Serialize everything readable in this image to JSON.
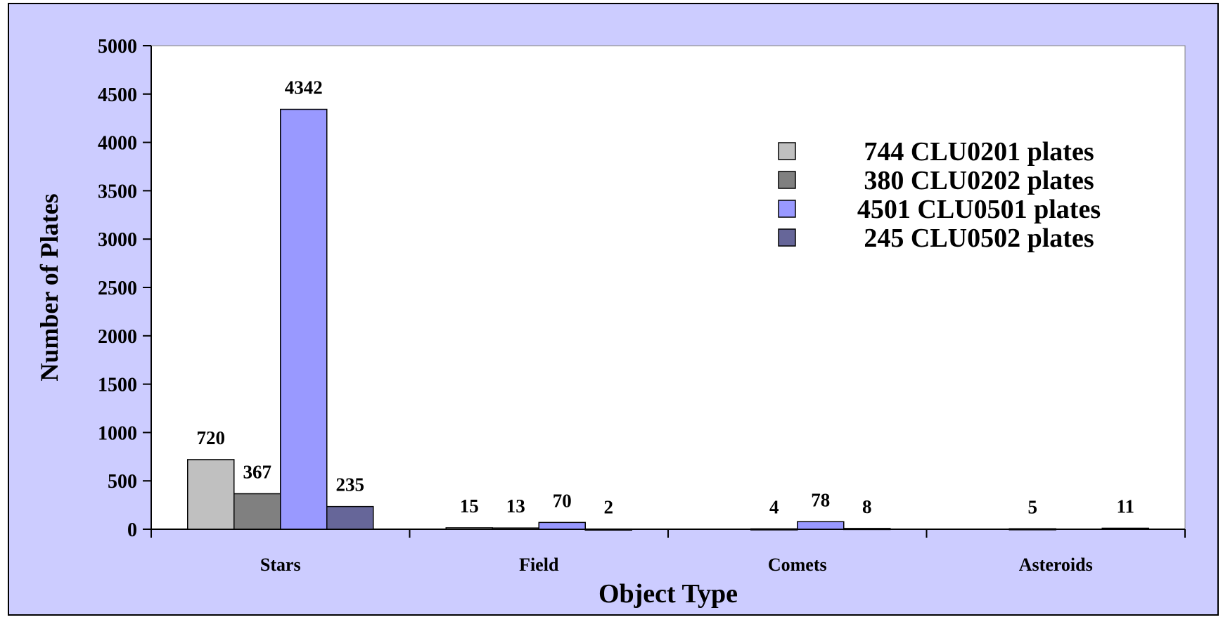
{
  "chart_data": {
    "type": "bar",
    "title": "",
    "xlabel": "Object Type",
    "ylabel": "Number of Plates",
    "ylim": [
      0,
      5000
    ],
    "yticks": [
      "0",
      "500",
      "1000",
      "1500",
      "2000",
      "2500",
      "3000",
      "3500",
      "4000",
      "4500",
      "5000"
    ],
    "categories": [
      "Stars",
      "Field",
      "Comets",
      "Asteroids"
    ],
    "series": [
      {
        "name": "744 CLU0201 plates",
        "values": [
          720,
          15,
          0,
          0
        ],
        "labels": [
          "720",
          "15",
          "",
          ""
        ]
      },
      {
        "name": "380 CLU0202 plates",
        "values": [
          367,
          13,
          4,
          5
        ],
        "labels": [
          "367",
          "13",
          "4",
          "5"
        ]
      },
      {
        "name": "4501 CLU0501 plates",
        "values": [
          4342,
          70,
          78,
          0
        ],
        "labels": [
          "4342",
          "70",
          "78",
          ""
        ]
      },
      {
        "name": "245 CLU0502 plates",
        "values": [
          235,
          2,
          8,
          11
        ],
        "labels": [
          "235",
          "2",
          "8",
          "11"
        ]
      }
    ],
    "legend_position": "top-right",
    "grid": false,
    "colors": {
      "background": "#ccccff",
      "plot_area": "#ffffff",
      "series": [
        "#c0c0c0",
        "#808080",
        "#9999ff",
        "#666699"
      ]
    }
  }
}
